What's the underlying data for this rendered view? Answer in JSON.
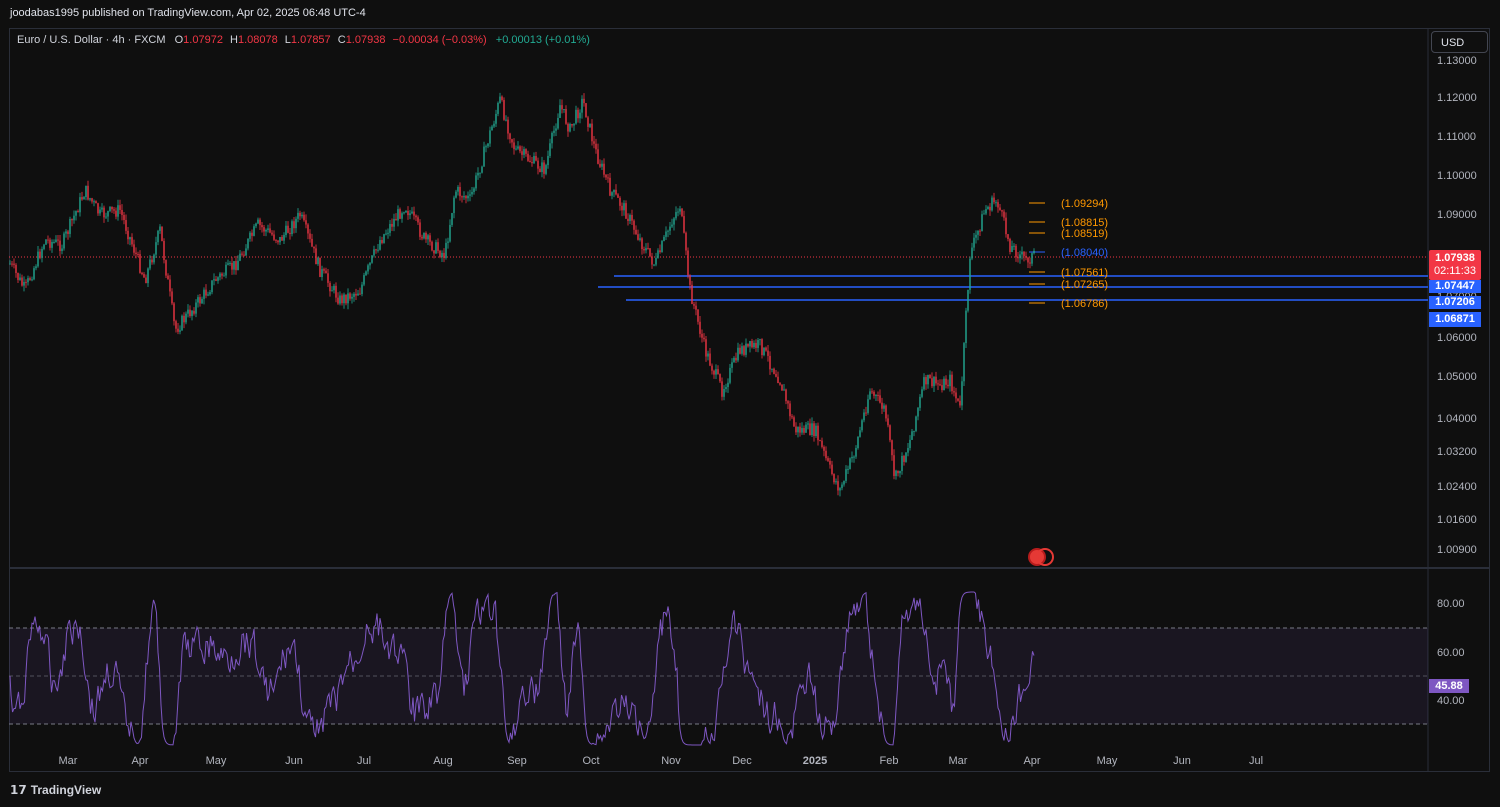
{
  "header": {
    "published": "joodabas1995 published on TradingView.com, Apr 02, 2025 06:48 UTC-4"
  },
  "legend": {
    "symbol": "Euro / U.S. Dollar · 4h · FXCM",
    "o_label": "O",
    "o_value": "1.07972",
    "h_label": "H",
    "h_value": "1.08078",
    "l_label": "L",
    "l_value": "1.07857",
    "c_label": "C",
    "c_value": "1.07938",
    "change": "−0.00034 (−0.03%)",
    "indicator_change": "+0.00013 (+0.01%)"
  },
  "currency_button": "USD",
  "price_scale": {
    "labels": [
      "1.13000",
      "1.12000",
      "1.11000",
      "1.10000",
      "1.09000",
      "1.08000",
      "1.07000",
      "1.06000",
      "1.05000",
      "1.04000",
      "1.03200",
      "1.02400",
      "1.01600",
      "1.00900"
    ]
  },
  "price_tags": {
    "last_price": "1.07938",
    "countdown": "02:11:33",
    "level1": "1.07447",
    "level2": "1.07206",
    "level3": "1.06871"
  },
  "fib_labels": [
    "(1.09294)",
    "(1.08815)",
    "(1.08519)",
    "(1.08040)",
    "(1.07561)",
    "(1.07265)",
    "(1.06786)"
  ],
  "time_axis": {
    "labels": [
      "Mar",
      "Apr",
      "May",
      "Jun",
      "Jul",
      "Aug",
      "Sep",
      "Oct",
      "Nov",
      "Dec",
      "2025",
      "Feb",
      "Mar",
      "Apr",
      "May",
      "Jun",
      "Jul"
    ]
  },
  "rsi": {
    "labels": [
      "80.00",
      "60.00",
      "40.00"
    ],
    "current": "45.88"
  },
  "footer": {
    "brand": "TradingView"
  },
  "colors": {
    "up": "#22ab94",
    "down": "#f23645",
    "fib": "#ff9800",
    "fib_mid": "#2962ff",
    "support": "#2962ff",
    "rsi": "#7e57c2",
    "last_price_tag": "#f23645"
  }
}
